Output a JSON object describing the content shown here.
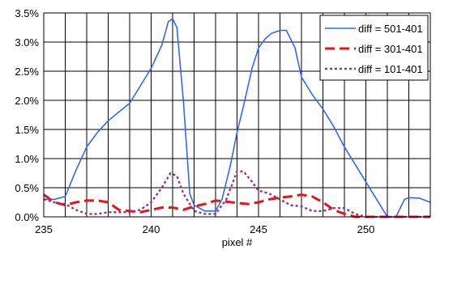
{
  "chart_data": {
    "type": "line",
    "title": "",
    "xlabel": "pixel #",
    "ylabel": "",
    "xlim": [
      235,
      253
    ],
    "ylim": [
      0,
      0.035
    ],
    "grid": true,
    "legend_position": "top-right",
    "x_ticks": [
      235,
      236,
      237,
      238,
      239,
      240,
      241,
      242,
      243,
      244,
      245,
      246,
      247,
      248,
      249,
      250,
      251,
      252,
      253
    ],
    "x_tick_labels": [
      "235",
      "240",
      "245",
      "250"
    ],
    "x_tick_label_values": [
      235,
      240,
      245,
      250
    ],
    "y_ticks": [
      0,
      0.005,
      0.01,
      0.015,
      0.02,
      0.025,
      0.03,
      0.035
    ],
    "y_tick_labels": [
      "0.0%",
      "0.5%",
      "1.0%",
      "1.5%",
      "2.0%",
      "2.5%",
      "3.0%",
      "3.5%"
    ],
    "series": [
      {
        "name": "diff = 501-401",
        "color": "#3366ff",
        "dash": "solid",
        "points": [
          [
            235,
            0.003
          ],
          [
            235.5,
            0.003
          ],
          [
            236,
            0.0035
          ],
          [
            236.5,
            0.008
          ],
          [
            237,
            0.012
          ],
          [
            237.5,
            0.0145
          ],
          [
            238,
            0.0165
          ],
          [
            238.5,
            0.018
          ],
          [
            239,
            0.0195
          ],
          [
            239.5,
            0.0225
          ],
          [
            240,
            0.0255
          ],
          [
            240.5,
            0.0295
          ],
          [
            240.8,
            0.0335
          ],
          [
            241,
            0.034
          ],
          [
            241.2,
            0.0325
          ],
          [
            241.5,
            0.02
          ],
          [
            241.8,
            0.004
          ],
          [
            242,
            0.002
          ],
          [
            242.5,
            0.001
          ],
          [
            243,
            0.001
          ],
          [
            243.3,
            0.003
          ],
          [
            243.7,
            0.009
          ],
          [
            244,
            0.0145
          ],
          [
            244.3,
            0.019
          ],
          [
            244.7,
            0.0255
          ],
          [
            245,
            0.029
          ],
          [
            245.3,
            0.0305
          ],
          [
            245.6,
            0.0315
          ],
          [
            246,
            0.032
          ],
          [
            246.3,
            0.032
          ],
          [
            246.7,
            0.029
          ],
          [
            247,
            0.024
          ],
          [
            247.5,
            0.021
          ],
          [
            248,
            0.0185
          ],
          [
            248.5,
            0.0155
          ],
          [
            249,
            0.012
          ],
          [
            249.5,
            0.009
          ],
          [
            250,
            0.006
          ],
          [
            250.5,
            0.003
          ],
          [
            251,
            0.0
          ],
          [
            251.4,
            0.0
          ],
          [
            251.8,
            0.003
          ],
          [
            252,
            0.0033
          ],
          [
            252.5,
            0.0032
          ],
          [
            253,
            0.0025
          ]
        ]
      },
      {
        "name": "diff = 301-401",
        "color": "#e8141b",
        "dash": "long-dash",
        "points": [
          [
            235,
            0.0038
          ],
          [
            235.5,
            0.0025
          ],
          [
            236,
            0.002
          ],
          [
            236.5,
            0.0025
          ],
          [
            237,
            0.0028
          ],
          [
            237.5,
            0.0028
          ],
          [
            238,
            0.0025
          ],
          [
            238.5,
            0.0012
          ],
          [
            239,
            0.001
          ],
          [
            239.5,
            0.0008
          ],
          [
            240,
            0.0012
          ],
          [
            240.5,
            0.0016
          ],
          [
            241,
            0.0016
          ],
          [
            241.5,
            0.0012
          ],
          [
            242,
            0.0018
          ],
          [
            242.5,
            0.0022
          ],
          [
            243,
            0.0028
          ],
          [
            243.5,
            0.0026
          ],
          [
            244,
            0.0024
          ],
          [
            244.5,
            0.0022
          ],
          [
            245,
            0.0025
          ],
          [
            245.5,
            0.003
          ],
          [
            246,
            0.0033
          ],
          [
            246.5,
            0.0035
          ],
          [
            247,
            0.0038
          ],
          [
            247.5,
            0.0035
          ],
          [
            248,
            0.0025
          ],
          [
            248.5,
            0.0012
          ],
          [
            249,
            0.0005
          ],
          [
            249.5,
            0.0
          ],
          [
            250,
            0.0
          ],
          [
            250.5,
            0.0
          ],
          [
            251,
            0.0
          ],
          [
            251.5,
            0.0
          ],
          [
            252,
            0.0
          ],
          [
            252.5,
            0.0
          ],
          [
            253,
            0.0
          ]
        ]
      },
      {
        "name": "diff = 101-401",
        "color": "#8b3a8b",
        "dash": "dotted",
        "points": [
          [
            235,
            0.003
          ],
          [
            235.5,
            0.0025
          ],
          [
            236,
            0.0022
          ],
          [
            236.5,
            0.0012
          ],
          [
            237,
            0.0005
          ],
          [
            237.5,
            0.0005
          ],
          [
            238,
            0.0008
          ],
          [
            238.5,
            0.0008
          ],
          [
            239,
            0.0008
          ],
          [
            239.5,
            0.0012
          ],
          [
            240,
            0.0025
          ],
          [
            240.5,
            0.005
          ],
          [
            240.9,
            0.0075
          ],
          [
            241.2,
            0.007
          ],
          [
            241.5,
            0.004
          ],
          [
            242,
            0.001
          ],
          [
            242.5,
            0.0005
          ],
          [
            243,
            0.0005
          ],
          [
            243.5,
            0.003
          ],
          [
            244,
            0.0078
          ],
          [
            244.3,
            0.0078
          ],
          [
            244.7,
            0.006
          ],
          [
            245,
            0.0045
          ],
          [
            245.5,
            0.004
          ],
          [
            246,
            0.003
          ],
          [
            246.5,
            0.002
          ],
          [
            247,
            0.0018
          ],
          [
            247.5,
            0.001
          ],
          [
            248,
            0.001
          ],
          [
            248.5,
            0.0015
          ],
          [
            249,
            0.0015
          ],
          [
            249.5,
            0.0005
          ],
          [
            250,
            0.0
          ],
          [
            250.5,
            0.0
          ],
          [
            251,
            0.0
          ],
          [
            252,
            0.0
          ],
          [
            253,
            0.0
          ]
        ]
      }
    ]
  }
}
